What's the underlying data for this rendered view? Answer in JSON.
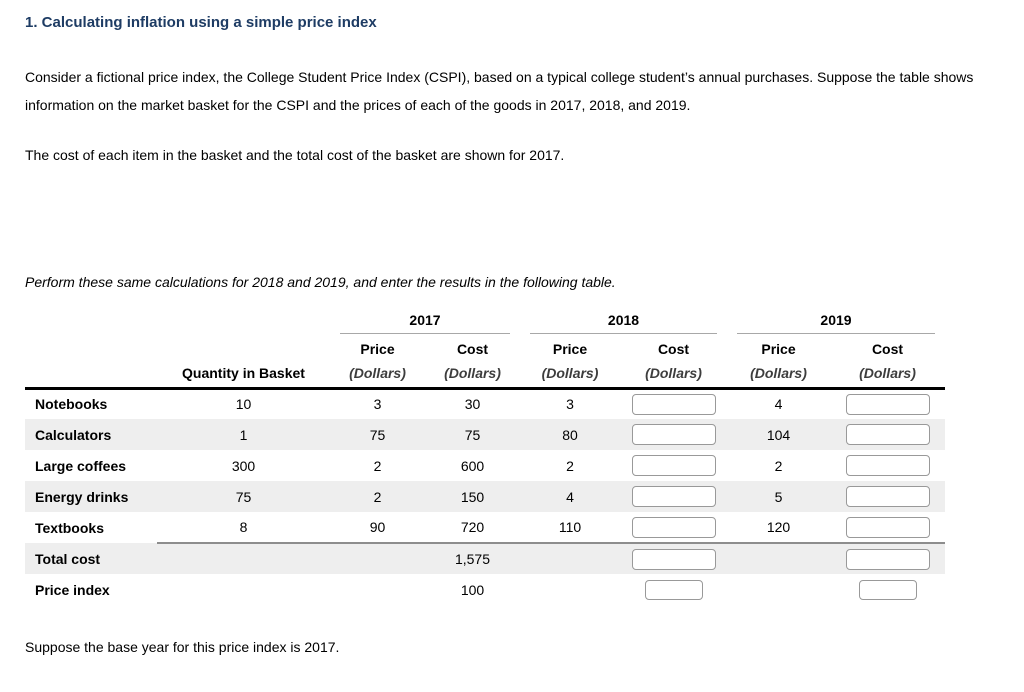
{
  "page": {
    "title": "1. Calculating inflation using a simple price index",
    "intro_paragraph": "Consider a fictional price index, the College Student Price Index (CSPI), based on a typical college student’s annual purchases. Suppose the table shows information on the market basket for the CSPI and the prices of each of the goods in 2017, 2018, and 2019.",
    "cost_paragraph": "The cost of each item in the basket and the total cost of the basket are shown for 2017.",
    "instruction_paragraph": "Perform these same calculations for 2018 and 2019, and enter the results in the following table.",
    "footer_note": "Suppose the base year for this price index is 2017."
  },
  "table": {
    "years": [
      "2017",
      "2018",
      "2019"
    ],
    "headers": {
      "quantity": "Quantity in Basket",
      "price": "Price",
      "cost": "Cost",
      "dollars": "(Dollars)"
    },
    "rows": [
      {
        "label": "Notebooks",
        "quantity": "10",
        "price2017": "3",
        "cost2017": "30",
        "price2018": "3",
        "price2019": "4"
      },
      {
        "label": "Calculators",
        "quantity": "1",
        "price2017": "75",
        "cost2017": "75",
        "price2018": "80",
        "price2019": "104"
      },
      {
        "label": "Large coffees",
        "quantity": "300",
        "price2017": "2",
        "cost2017": "600",
        "price2018": "2",
        "price2019": "2"
      },
      {
        "label": "Energy drinks",
        "quantity": "75",
        "price2017": "2",
        "cost2017": "150",
        "price2018": "4",
        "price2019": "5"
      },
      {
        "label": "Textbooks",
        "quantity": "8",
        "price2017": "90",
        "cost2017": "720",
        "price2018": "110",
        "price2019": "120"
      }
    ],
    "total_row": {
      "label": "Total cost",
      "cost2017": "1,575"
    },
    "price_index_row": {
      "label": "Price index",
      "cost2017": "100"
    }
  },
  "colors": {
    "title_navy": "#1e3c64",
    "row_stripe": "#eeeeee",
    "input_border": "#999999",
    "header_rule": "#000000",
    "subtotal_rule": "#8d8d8d"
  }
}
